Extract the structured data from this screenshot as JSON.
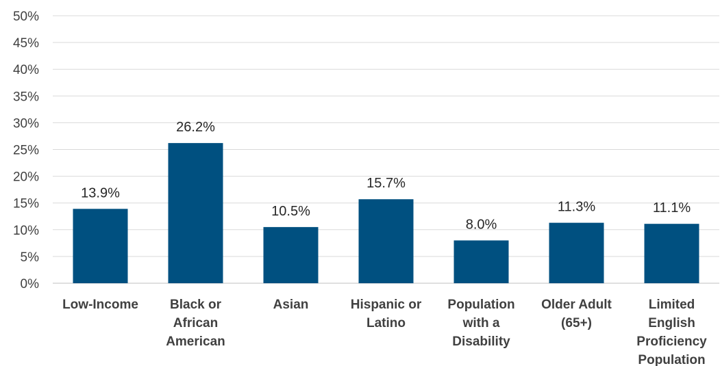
{
  "chart_data": {
    "type": "bar",
    "title": "",
    "xlabel": "",
    "ylabel": "",
    "categories": [
      [
        "Low-Income"
      ],
      [
        "Black or",
        "African",
        "American"
      ],
      [
        "Asian"
      ],
      [
        "Hispanic or",
        "Latino"
      ],
      [
        "Population",
        "with a",
        "Disability"
      ],
      [
        "Older Adult",
        "(65+)"
      ],
      [
        "Limited",
        "English",
        "Proficiency",
        "Population"
      ]
    ],
    "values": [
      13.9,
      26.2,
      10.5,
      15.7,
      8.0,
      11.3,
      11.1
    ],
    "data_labels": [
      "13.9%",
      "26.2%",
      "10.5%",
      "15.7%",
      "8.0%",
      "11.3%",
      "11.1%"
    ],
    "ylim": [
      0,
      50
    ],
    "y_ticks": [
      0,
      5,
      10,
      15,
      20,
      25,
      30,
      35,
      40,
      45,
      50
    ],
    "y_tick_labels": [
      "0%",
      "5%",
      "10%",
      "15%",
      "20%",
      "25%",
      "30%",
      "35%",
      "40%",
      "45%",
      "50%"
    ],
    "grid": true,
    "legend": "none",
    "bar_color": "#005080"
  }
}
